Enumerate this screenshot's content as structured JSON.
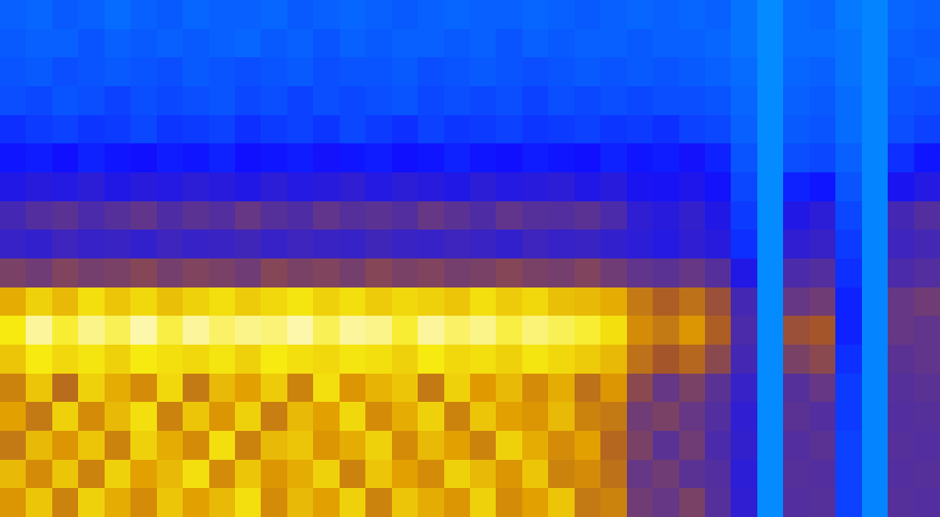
{
  "chart_data": {
    "type": "heatmap",
    "tick_labels": false,
    "zlim": [
      0,
      100
    ],
    "cells": [
      [
        12,
        11,
        13,
        12,
        10,
        12,
        13,
        11,
        12,
        12,
        11,
        13,
        12,
        11,
        12,
        13,
        12,
        11,
        12,
        12,
        11,
        12,
        13,
        12,
        11,
        12,
        11,
        12,
        9,
        5,
        10,
        11,
        8,
        6,
        11,
        12
      ],
      [
        13,
        12,
        12,
        14,
        12,
        13,
        12,
        13,
        12,
        11,
        13,
        12,
        14,
        12,
        13,
        12,
        12,
        13,
        12,
        14,
        12,
        13,
        12,
        12,
        13,
        12,
        12,
        11,
        9,
        5,
        10,
        10,
        9,
        6,
        12,
        13
      ],
      [
        14,
        13,
        15,
        14,
        13,
        14,
        15,
        13,
        14,
        15,
        14,
        13,
        15,
        14,
        14,
        13,
        15,
        14,
        13,
        14,
        15,
        14,
        13,
        14,
        13,
        14,
        13,
        12,
        10,
        5,
        11,
        12,
        9,
        6,
        13,
        12
      ],
      [
        15,
        16,
        14,
        15,
        17,
        15,
        16,
        15,
        14,
        16,
        15,
        17,
        15,
        16,
        15,
        14,
        16,
        15,
        16,
        15,
        17,
        15,
        16,
        15,
        16,
        15,
        15,
        14,
        11,
        5,
        12,
        13,
        10,
        6,
        14,
        15
      ],
      [
        20,
        18,
        17,
        19,
        18,
        16,
        19,
        18,
        17,
        20,
        18,
        17,
        19,
        16,
        18,
        20,
        17,
        19,
        18,
        17,
        19,
        18,
        17,
        19,
        18,
        20,
        17,
        16,
        12,
        5,
        13,
        14,
        10,
        6,
        15,
        17
      ],
      [
        24,
        23,
        25,
        22,
        24,
        25,
        23,
        24,
        22,
        25,
        24,
        23,
        26,
        24,
        23,
        25,
        24,
        22,
        24,
        25,
        23,
        24,
        25,
        22,
        24,
        23,
        26,
        22,
        14,
        5,
        15,
        16,
        12,
        6,
        20,
        24
      ],
      [
        30,
        32,
        31,
        33,
        30,
        32,
        31,
        33,
        32,
        30,
        33,
        31,
        32,
        34,
        31,
        33,
        32,
        30,
        33,
        31,
        32,
        33,
        30,
        32,
        28,
        27,
        29,
        26,
        16,
        5,
        22,
        24,
        14,
        6,
        28,
        31
      ],
      [
        40,
        44,
        46,
        42,
        45,
        47,
        43,
        46,
        44,
        48,
        45,
        43,
        47,
        45,
        46,
        44,
        48,
        46,
        43,
        47,
        45,
        44,
        46,
        42,
        34,
        32,
        35,
        30,
        18,
        5,
        30,
        33,
        16,
        6,
        40,
        44
      ],
      [
        36,
        35,
        38,
        36,
        37,
        35,
        38,
        36,
        37,
        39,
        36,
        38,
        37,
        36,
        39,
        37,
        36,
        38,
        37,
        35,
        38,
        36,
        37,
        35,
        33,
        31,
        34,
        32,
        20,
        5,
        34,
        36,
        18,
        6,
        38,
        40
      ],
      [
        52,
        50,
        53,
        51,
        52,
        54,
        51,
        53,
        52,
        50,
        54,
        52,
        53,
        51,
        54,
        52,
        53,
        51,
        52,
        54,
        52,
        51,
        53,
        50,
        47,
        46,
        48,
        45,
        30,
        5,
        42,
        44,
        20,
        6,
        42,
        44
      ],
      [
        78,
        84,
        80,
        86,
        82,
        85,
        81,
        84,
        86,
        83,
        85,
        87,
        84,
        86,
        83,
        85,
        84,
        82,
        86,
        83,
        85,
        81,
        80,
        78,
        68,
        62,
        66,
        58,
        40,
        5,
        48,
        50,
        22,
        6,
        48,
        50
      ],
      [
        88,
        96,
        90,
        95,
        92,
        97,
        91,
        96,
        93,
        95,
        94,
        97,
        92,
        96,
        95,
        90,
        96,
        93,
        95,
        91,
        94,
        92,
        90,
        86,
        72,
        68,
        74,
        62,
        42,
        5,
        58,
        60,
        22,
        6,
        48,
        47
      ],
      [
        82,
        88,
        85,
        87,
        84,
        88,
        86,
        85,
        87,
        84,
        88,
        86,
        85,
        87,
        86,
        84,
        88,
        85,
        86,
        84,
        87,
        85,
        83,
        80,
        66,
        60,
        64,
        55,
        40,
        5,
        52,
        55,
        20,
        6,
        46,
        47
      ],
      [
        70,
        82,
        65,
        84,
        78,
        72,
        85,
        68,
        80,
        76,
        83,
        70,
        86,
        74,
        79,
        82,
        68,
        84,
        75,
        80,
        72,
        78,
        66,
        74,
        55,
        48,
        52,
        46,
        36,
        5,
        45,
        48,
        18,
        6,
        45,
        46
      ],
      [
        76,
        68,
        84,
        72,
        80,
        86,
        70,
        82,
        74,
        84,
        69,
        80,
        76,
        85,
        72,
        78,
        84,
        70,
        82,
        76,
        74,
        80,
        70,
        68,
        50,
        52,
        48,
        44,
        34,
        5,
        46,
        44,
        18,
        6,
        44,
        45
      ],
      [
        68,
        80,
        74,
        82,
        70,
        84,
        78,
        72,
        86,
        70,
        80,
        82,
        74,
        78,
        84,
        72,
        80,
        76,
        70,
        84,
        78,
        72,
        76,
        64,
        52,
        46,
        50,
        42,
        35,
        5,
        44,
        46,
        17,
        6,
        45,
        44
      ],
      [
        80,
        72,
        82,
        70,
        84,
        76,
        80,
        86,
        72,
        82,
        74,
        78,
        84,
        70,
        82,
        76,
        72,
        84,
        80,
        74,
        82,
        70,
        72,
        66,
        48,
        50,
        46,
        44,
        33,
        5,
        45,
        44,
        17,
        6,
        44,
        45
      ],
      [
        74,
        82,
        70,
        84,
        78,
        72,
        82,
        76,
        80,
        86,
        72,
        80,
        76,
        84,
        70,
        82,
        78,
        74,
        84,
        72,
        76,
        82,
        68,
        70,
        50,
        48,
        52,
        45,
        34,
        5,
        44,
        45,
        17,
        6,
        45,
        44
      ]
    ]
  }
}
